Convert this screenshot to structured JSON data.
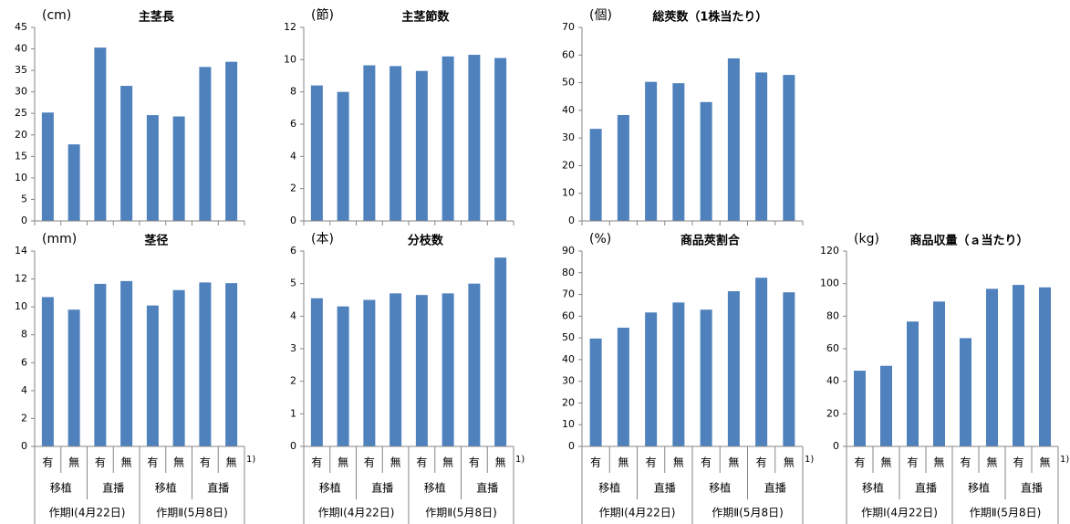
{
  "chart_data": [
    {
      "type": "bar",
      "title": "主茎長",
      "unit_label": "(cm)",
      "color": "#4f81bd",
      "values": [
        25.2,
        17.8,
        40.3,
        31.4,
        24.6,
        24.3,
        35.8,
        37.0
      ],
      "ylim": [
        0,
        45
      ],
      "yticks": [
        0,
        5,
        10,
        15,
        20,
        25,
        30,
        35,
        40,
        45
      ]
    },
    {
      "type": "bar",
      "title": "主茎節数",
      "unit_label": "(節)",
      "color": "#4f81bd",
      "values": [
        8.4,
        8.0,
        9.65,
        9.6,
        9.3,
        10.2,
        10.3,
        10.1
      ],
      "ylim": [
        0,
        12
      ],
      "yticks": [
        0,
        2,
        4,
        6,
        8,
        10,
        12
      ]
    },
    {
      "type": "bar",
      "title": "総莢数（1株当たり）",
      "unit_label": "(個)",
      "color": "#4f81bd",
      "values": [
        33.3,
        38.3,
        50.3,
        49.8,
        43.0,
        58.8,
        53.7,
        52.8
      ],
      "ylim": [
        0,
        70
      ],
      "yticks": [
        0,
        10,
        20,
        30,
        40,
        50,
        60,
        70
      ]
    },
    {
      "type": "bar",
      "title": "茎径",
      "unit_label": "(mm)",
      "color": "#4f81bd",
      "values": [
        10.7,
        9.8,
        11.65,
        11.85,
        10.1,
        11.2,
        11.75,
        11.7
      ],
      "ylim": [
        0,
        14
      ],
      "yticks": [
        0,
        2,
        4,
        6,
        8,
        10,
        12,
        14
      ],
      "categories": [
        "有",
        "無",
        "有",
        "無",
        "有",
        "無",
        "有",
        "無"
      ],
      "category_groups": [
        "移植",
        "直播",
        "移植",
        "直播"
      ],
      "periods": [
        "作期Ⅰ(4月22日)",
        "作期Ⅱ(5月8日)"
      ],
      "note": "1)"
    },
    {
      "type": "bar",
      "title": "分枝数",
      "unit_label": "(本)",
      "color": "#4f81bd",
      "values": [
        4.55,
        4.3,
        4.5,
        4.7,
        4.65,
        4.7,
        5.0,
        5.8
      ],
      "ylim": [
        0,
        6
      ],
      "yticks": [
        0,
        1,
        2,
        3,
        4,
        5,
        6
      ],
      "categories": [
        "有",
        "無",
        "有",
        "無",
        "有",
        "無",
        "有",
        "無"
      ],
      "category_groups": [
        "移植",
        "直播",
        "移植",
        "直播"
      ],
      "periods": [
        "作期Ⅰ(4月22日)",
        "作期Ⅱ(5月8日)"
      ],
      "note": "1)"
    },
    {
      "type": "bar",
      "title": "商品莢割合",
      "unit_label": "(%)",
      "color": "#4f81bd",
      "values": [
        49.7,
        54.7,
        61.7,
        66.3,
        63.0,
        71.5,
        77.7,
        71.0
      ],
      "ylim": [
        0,
        90
      ],
      "yticks": [
        0,
        10,
        20,
        30,
        40,
        50,
        60,
        70,
        80,
        90
      ],
      "categories": [
        "有",
        "無",
        "有",
        "無",
        "有",
        "無",
        "有",
        "無"
      ],
      "category_groups": [
        "移植",
        "直播",
        "移植",
        "直播"
      ],
      "periods": [
        "作期Ⅰ(4月22日)",
        "作期Ⅱ(5月8日)"
      ],
      "note": "1)"
    },
    {
      "type": "bar",
      "title": "商品収量（ａ当たり）",
      "unit_label": "(kg)",
      "color": "#4f81bd",
      "values": [
        46.5,
        49.5,
        76.7,
        89.0,
        66.5,
        96.8,
        99.2,
        97.7
      ],
      "ylim": [
        0,
        120
      ],
      "yticks": [
        0,
        20,
        40,
        60,
        80,
        100,
        120
      ],
      "categories": [
        "有",
        "無",
        "有",
        "無",
        "有",
        "無",
        "有",
        "無"
      ],
      "category_groups": [
        "移植",
        "直播",
        "移植",
        "直播"
      ],
      "periods": [
        "作期Ⅰ(4月22日)",
        "作期Ⅱ(5月8日)"
      ],
      "note": "1)"
    }
  ]
}
